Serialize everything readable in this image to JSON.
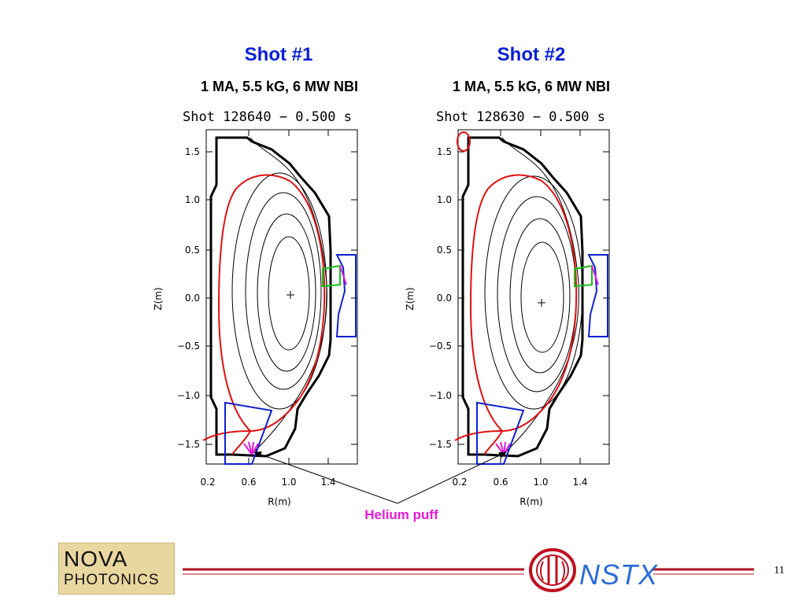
{
  "panels": [
    {
      "heading": "Shot #1",
      "subheading": "1 MA, 5.5 kG, 6 MW NBI",
      "plot_title": "Shot 128640 − 0.500 s",
      "x_axis_label": "R(m)",
      "y_axis_label": "Z(m)",
      "x_ticks": [
        "0.2",
        "0.6",
        "1.0",
        "1.4"
      ],
      "y_ticks": [
        "1.5",
        "1.0",
        "0.5",
        "0.0",
        "−0.5",
        "−1.0",
        "−1.5"
      ]
    },
    {
      "heading": "Shot #2",
      "subheading": "1 MA, 5.5 kG, 6 MW NBI",
      "plot_title": "Shot 128630 − 0.500 s",
      "x_axis_label": "R(m)",
      "y_axis_label": "Z(m)",
      "x_ticks": [
        "0.2",
        "0.6",
        "1.0",
        "1.4"
      ],
      "y_ticks": [
        "1.5",
        "1.0",
        "0.5",
        "0.0",
        "−0.5",
        "−1.0",
        "−1.5"
      ]
    }
  ],
  "callout": "Helium puff",
  "footer": {
    "logo_left_line1": "NOVA",
    "logo_left_line2": "PHOTONICS",
    "logo_right": "NSTX",
    "page_number": "11"
  },
  "colors": {
    "heading": "#0a1fd6",
    "callout": "#e81ad9",
    "separatrix": "#e01010",
    "diagnostic_box": "#1020d0",
    "view_chord": "#18c018",
    "puff_marker": "#e81ad9"
  },
  "icons": [
    "nova-photonics-logo",
    "nstx-logo"
  ]
}
